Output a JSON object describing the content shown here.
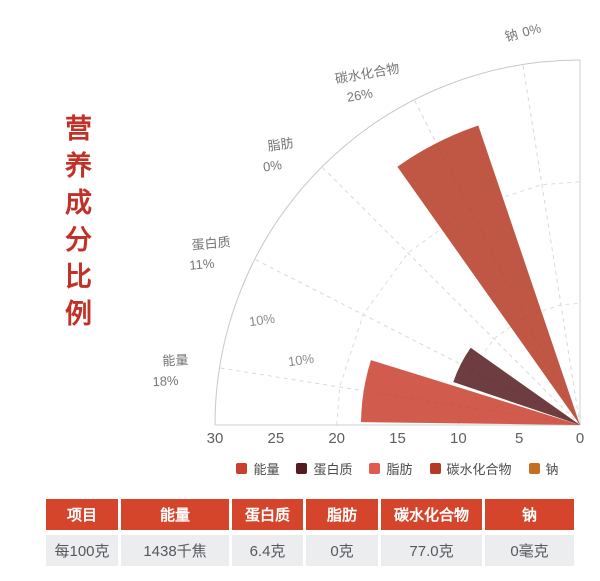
{
  "title": {
    "text": "营养成分比例",
    "color": "#C13127"
  },
  "chart_data": {
    "type": "rose",
    "title": "营养成分比例",
    "categories": [
      "能量",
      "蛋白质",
      "脂肪",
      "碳水化合物",
      "钠"
    ],
    "values": [
      18,
      11,
      0,
      26,
      0
    ],
    "value_labels": [
      "18%",
      "11%",
      "0%",
      "26%",
      "0%"
    ],
    "colors": [
      "#C9402F",
      "#541B20",
      "#E25A4D",
      "#B53A25",
      "#C56F1E"
    ],
    "radial_ticks": [
      "30",
      "25",
      "20",
      "15",
      "10",
      "5",
      "0"
    ],
    "radial_max": 30,
    "inner_labels": [
      "10%",
      "10%"
    ],
    "angle_span_deg": 90,
    "grid": "dashed-spokes-and-rings",
    "legend_position": "bottom"
  },
  "table": {
    "headers": [
      "项目",
      "能量",
      "蛋白质",
      "脂肪",
      "碳水化合物",
      "钠"
    ],
    "rows": [
      [
        "每100克",
        "1438千焦",
        "6.4克",
        "0克",
        "77.0克",
        "0毫克"
      ]
    ],
    "header_bg": "#D5452B",
    "row_bg": "#ECEDEF"
  }
}
